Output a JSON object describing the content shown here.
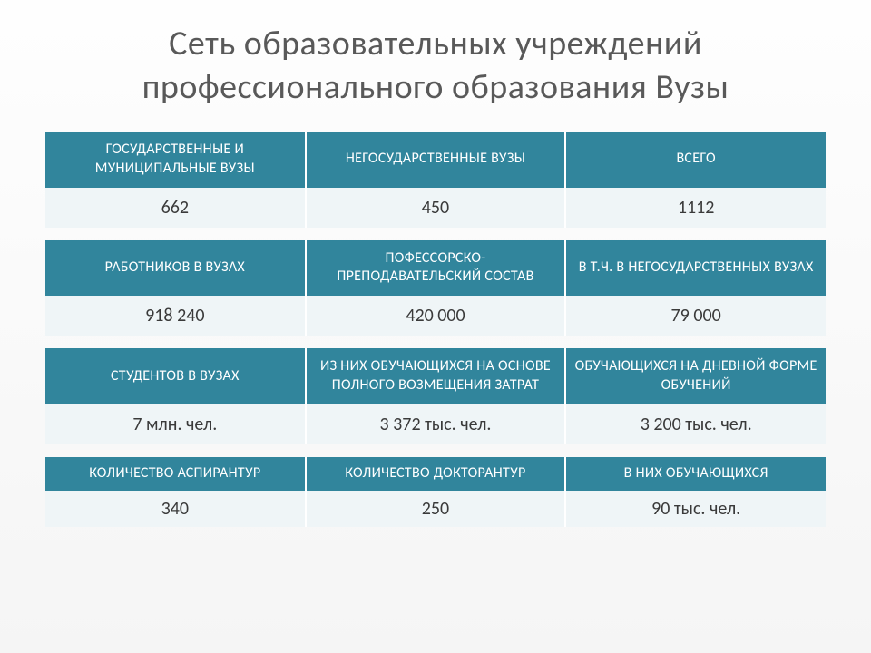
{
  "title": "Сеть образовательных учреждений профессионального образования Вузы",
  "tables": {
    "t1": {
      "headers": [
        "Государственные и муниципальные вузы",
        "Негосударственные вузы",
        "Всего"
      ],
      "values": [
        "662",
        "450",
        "1112"
      ]
    },
    "t2": {
      "headers": [
        "Работников в вузах",
        "Пофессорско-преподавательский состав",
        "в т.ч. в негосударственных вузах"
      ],
      "values": [
        "918 240",
        "420 000",
        "79 000"
      ]
    },
    "t3": {
      "headers": [
        "Студентов в вузах",
        "Из них обучающихся на основе полного возмещения затрат",
        "Обучающихся на дневной форме обучений"
      ],
      "values": [
        "7 млн. чел.",
        "3 372 тыс. чел.",
        "3 200 тыс. чел."
      ]
    },
    "t4": {
      "headers": [
        "Количество аспирантур",
        "Количество докторантур",
        "В них обучающихся"
      ],
      "values": [
        "340",
        "250",
        "90 тыс. чел."
      ]
    }
  },
  "styling": {
    "header_bg": "#31859c",
    "header_text": "#ffffff",
    "data_bg": "#eff5f7",
    "data_text": "#3a3a3a",
    "title_color": "#595959",
    "page_bg": "#fefefe",
    "cell_border": "#ffffff",
    "title_fontsize": 38,
    "header_fontsize": 16,
    "data_fontsize": 20,
    "columns_per_table": 3,
    "table_count": 4
  }
}
